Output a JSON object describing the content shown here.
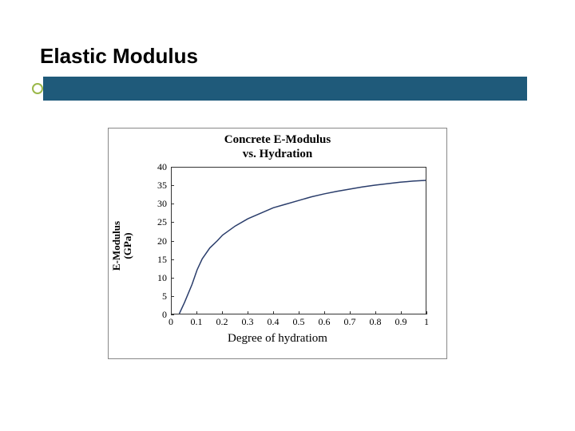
{
  "slide": {
    "title": "Elastic Modulus",
    "bullet_color": "#9bb84a",
    "bar_color": "#1f5a7a"
  },
  "chart": {
    "type": "line",
    "title_line1": "Concrete E-Modulus",
    "title_line2": "vs. Hydration",
    "title_fontsize": 15,
    "xlabel": "Degree of hydratiom",
    "ylabel_line1": "E-Modulus",
    "ylabel_line2": "(GPa)",
    "label_fontsize": 15,
    "xlim": [
      0,
      1
    ],
    "ylim": [
      0,
      40
    ],
    "xticks": [
      0,
      0.1,
      0.2,
      0.3,
      0.4,
      0.5,
      0.6,
      0.7,
      0.8,
      0.9,
      1
    ],
    "yticks": [
      0,
      5,
      10,
      15,
      20,
      25,
      30,
      35,
      40
    ],
    "xtick_labels": [
      "0",
      "0.1",
      "0.2",
      "0.3",
      "0.4",
      "0.5",
      "0.6",
      "0.7",
      "0.8",
      "0.9",
      "1"
    ],
    "ytick_labels": [
      "0",
      "5",
      "10",
      "15",
      "20",
      "25",
      "30",
      "35",
      "40"
    ],
    "line_color": "#2a3d6b",
    "line_width": 1.5,
    "background_color": "#ffffff",
    "border_color": "#888888",
    "series": {
      "x": [
        0.03,
        0.05,
        0.08,
        0.1,
        0.12,
        0.15,
        0.18,
        0.2,
        0.25,
        0.3,
        0.35,
        0.4,
        0.45,
        0.5,
        0.55,
        0.6,
        0.65,
        0.7,
        0.75,
        0.8,
        0.85,
        0.9,
        0.95,
        1.0
      ],
      "y": [
        0,
        3,
        8,
        12,
        15,
        18,
        20,
        21.5,
        24,
        26,
        27.5,
        29,
        30,
        31,
        32,
        32.8,
        33.5,
        34.1,
        34.7,
        35.2,
        35.6,
        36,
        36.3,
        36.5
      ]
    }
  }
}
